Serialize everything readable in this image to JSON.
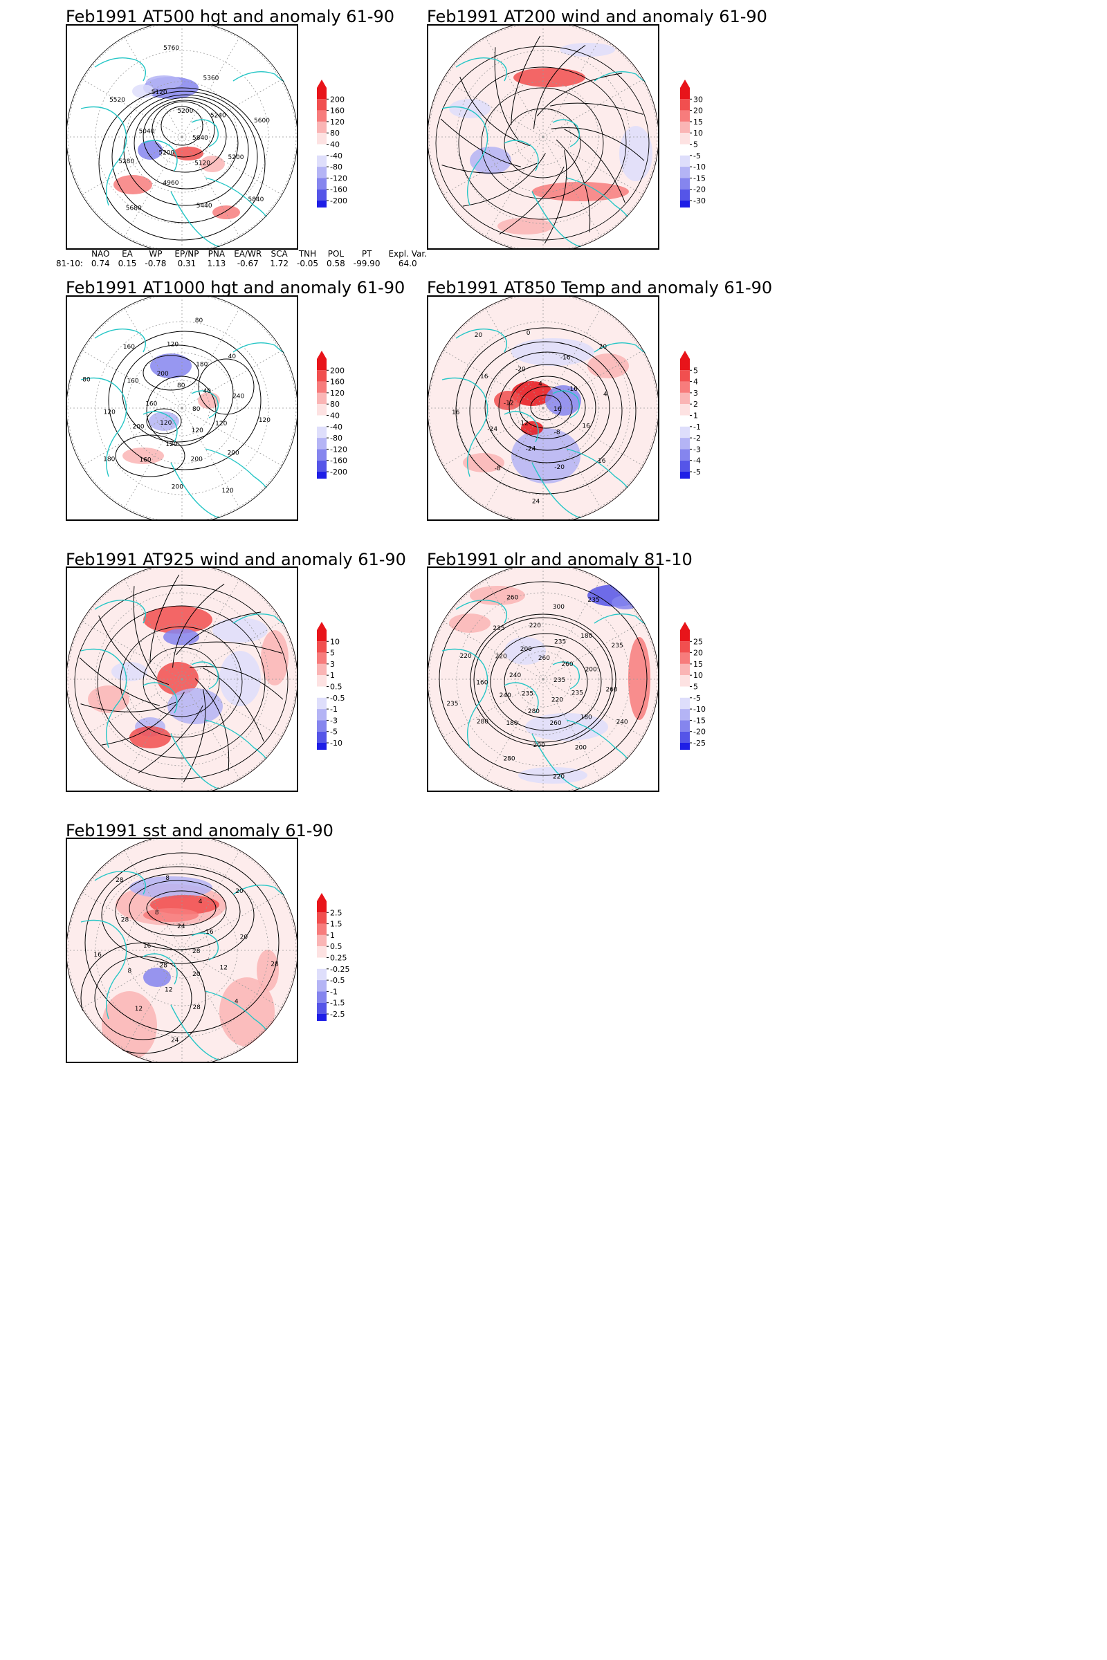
{
  "panels": [
    {
      "id": "p1",
      "title": "Feb1991 AT500 hgt and anomaly 61-90",
      "scale": [
        "200",
        "160",
        "120",
        "80",
        "40",
        "-40",
        "-80",
        "-120",
        "-160",
        "-200"
      ],
      "contour_labels": [
        "5840",
        "5200",
        "5200",
        "5120",
        "5040",
        "5240",
        "4960",
        "5120",
        "5200",
        "5280",
        "5360",
        "5440",
        "5520",
        "5600",
        "5680",
        "5760",
        "5840"
      ]
    },
    {
      "id": "p2",
      "title": "Feb1991 AT200 wind and anomaly 61-90",
      "scale": [
        "30",
        "20",
        "15",
        "10",
        "5",
        "-5",
        "-10",
        "-15",
        "-20",
        "-30"
      ]
    },
    {
      "id": "p3",
      "title": "Feb1991 AT1000 hgt and anomaly 61-90",
      "scale": [
        "200",
        "160",
        "120",
        "80",
        "40",
        "-40",
        "-80",
        "-120",
        "-160",
        "-200"
      ],
      "contour_labels": [
        "80",
        "120",
        "80",
        "120",
        "160",
        "40",
        "120",
        "200",
        "120",
        "200",
        "180",
        "200",
        "160",
        "240",
        "160",
        "120",
        "200",
        "120",
        "40",
        "200",
        "160",
        "120",
        "180",
        "80",
        "120",
        "80"
      ]
    },
    {
      "id": "p4",
      "title": "Feb1991 AT850 Temp and anomaly 61-90",
      "scale": [
        "5",
        "4",
        "3",
        "2",
        "1",
        "-1",
        "-2",
        "-3",
        "-4",
        "-5"
      ],
      "contour_labels": [
        "16",
        "12",
        "4",
        "-8",
        "-12",
        "-16",
        "-24",
        "-20",
        "16",
        "-24",
        "-16",
        "-20",
        "16",
        "4",
        "-8",
        "0",
        "16",
        "16",
        "20",
        "24",
        "20"
      ]
    },
    {
      "id": "p5",
      "title": "Feb1991 AT925 wind and anomaly 61-90",
      "scale": [
        "10",
        "5",
        "3",
        "1",
        "0.5",
        "-0.5",
        "-1",
        "-3",
        "-5",
        "-10"
      ]
    },
    {
      "id": "p6",
      "title": "Feb1991 olr and anomaly 81-10",
      "scale": [
        "25",
        "20",
        "15",
        "10",
        "5",
        "-5",
        "-10",
        "-15",
        "-20",
        "-25"
      ],
      "contour_labels": [
        "235",
        "235",
        "260",
        "220",
        "240",
        "260",
        "280",
        "200",
        "235",
        "240",
        "235",
        "260",
        "220",
        "200",
        "180",
        "220",
        "180",
        "160",
        "180",
        "200",
        "235",
        "260",
        "280",
        "300",
        "200",
        "220",
        "235",
        "280",
        "260",
        "240",
        "235",
        "235",
        "220"
      ]
    },
    {
      "id": "p7",
      "title": "Feb1991 sst and anomaly 61-90",
      "scale": [
        "2.5",
        "1.5",
        "1",
        "0.5",
        "0.25",
        "-0.25",
        "-0.5",
        "-1",
        "-1.5",
        "-2.5"
      ],
      "contour_labels": [
        "28",
        "28",
        "24",
        "20",
        "16",
        "16",
        "12",
        "8",
        "12",
        "8",
        "4",
        "28",
        "28",
        "20",
        "12",
        "8",
        "4",
        "16",
        "20",
        "24",
        "28",
        "28"
      ]
    }
  ],
  "indices": {
    "headers": [
      "",
      "NAO",
      "EA",
      "WP",
      "EP/NP",
      "PNA",
      "EA/WR",
      "SCA",
      "TNH",
      "POL",
      "PT",
      "Expl. Var."
    ],
    "values": [
      "81-10:",
      "0.74",
      "0.15",
      "-0.78",
      "0.31",
      "1.13",
      "-0.67",
      "1.72",
      "-0.05",
      "0.58",
      "-99.90",
      "64.0"
    ]
  },
  "colors": {
    "scale": [
      "#e8141a",
      "#f14f4f",
      "#f77c7c",
      "#fab5b5",
      "#fde2e2",
      "#ffffff",
      "#dedefb",
      "#b4b4f5",
      "#8585ee",
      "#5555e8",
      "#1e1ee6"
    ],
    "coast": "#26c6c6"
  }
}
